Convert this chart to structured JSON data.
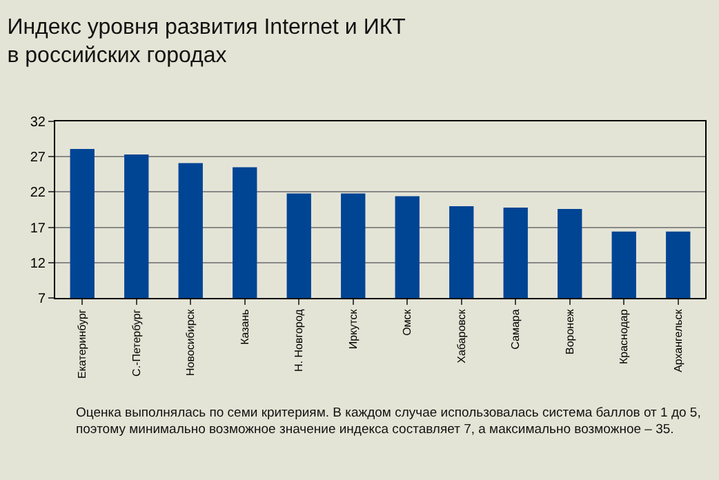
{
  "chart_data": {
    "type": "bar",
    "title": "Индекс уровня развития Internet и ИКТ\nв российских городах",
    "categories": [
      "Екатеринбург",
      "С.-Петербург",
      "Новосибирск",
      "Казань",
      "Н. Новгород",
      "Иркутск",
      "Омск",
      "Хабаровск",
      "Самара",
      "Воронеж",
      "Краснодар",
      "Архангельск"
    ],
    "values": [
      28.1,
      27.3,
      26.1,
      25.5,
      21.8,
      21.8,
      21.4,
      20.0,
      19.8,
      19.6,
      16.4,
      16.4
    ],
    "color": "#004494",
    "ylim": [
      7,
      32
    ],
    "yticks": [
      7,
      12,
      17,
      22,
      27,
      32
    ],
    "grid": "y",
    "annotations": [
      "Оценка выполнялась по семи критериям. В каждом случае использовалась система баллов от 1 до 5, поэтому минимально возможное значение индекса составляет 7, а максимально возможное – 35."
    ]
  }
}
